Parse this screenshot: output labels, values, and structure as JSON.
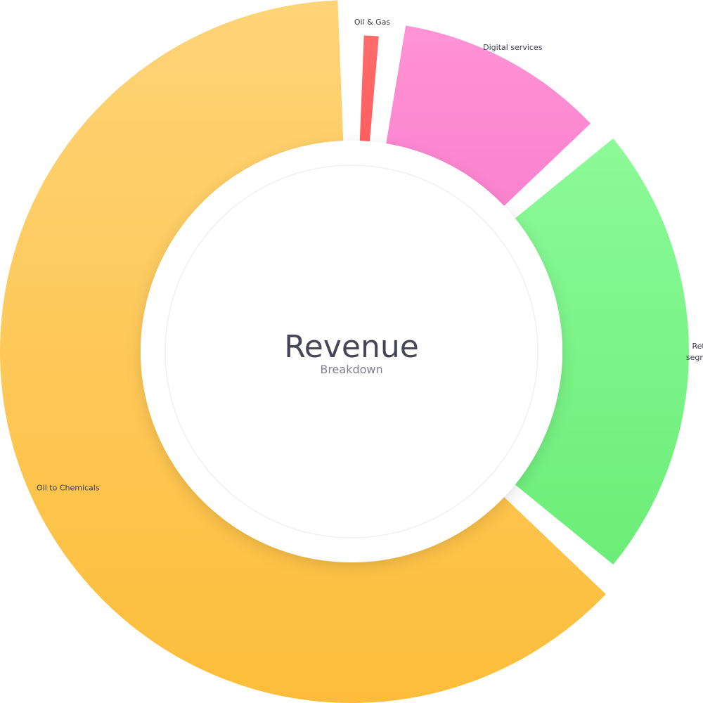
{
  "chart_data": {
    "type": "pie",
    "variant": "donut",
    "title": "Revenue",
    "subtitle": "Breakdown",
    "legend": "none",
    "slices": [
      {
        "label": "Oil & Gas",
        "value": 2,
        "color": "#ff6b6b",
        "colorEnd": "#ff5f5f",
        "radial": 0.75
      },
      {
        "label": "Digital services",
        "value": 11.5,
        "color": "#ff93d4",
        "colorEnd": "#fa82cf",
        "radial": 0.85
      },
      {
        "label": "Retail segment",
        "value": 23,
        "color": "#8cfa98",
        "colorEnd": "#6bed78",
        "radial": 0.9
      },
      {
        "label": "Oil to Chemicals",
        "value": 63.5,
        "color": "#fed478",
        "colorEnd": "#fdbd3a",
        "radial": 1.0
      }
    ]
  }
}
